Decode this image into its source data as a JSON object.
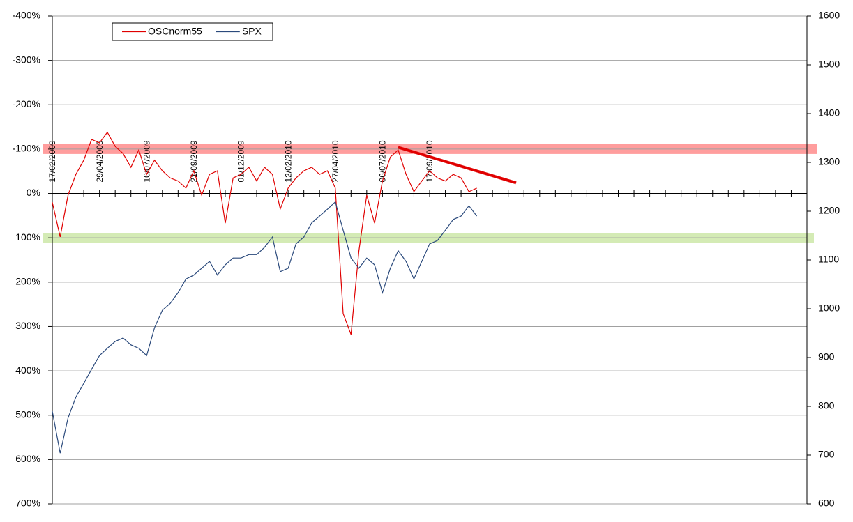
{
  "chart_data": {
    "type": "line",
    "categories": [
      "17/02/2009",
      null,
      null,
      null,
      null,
      null,
      "29/04/2009",
      null,
      null,
      null,
      null,
      null,
      "10/07/2009",
      null,
      null,
      null,
      null,
      null,
      "21/09/2009",
      null,
      null,
      null,
      null,
      null,
      "01/12/2009",
      null,
      null,
      null,
      null,
      null,
      "12/02/2010",
      null,
      null,
      null,
      null,
      null,
      "27/04/2010",
      null,
      null,
      null,
      null,
      null,
      "06/07/2010",
      null,
      null,
      null,
      null,
      null,
      "17/09/2010",
      null,
      null,
      null,
      null,
      null,
      null,
      null,
      null,
      null,
      null,
      null,
      null,
      null,
      null,
      null,
      null,
      null,
      null,
      null,
      null,
      null,
      null,
      null,
      null,
      null,
      null,
      null,
      null,
      null,
      null,
      null,
      null,
      null,
      null,
      null,
      null,
      null,
      null,
      null,
      null,
      null,
      null,
      null,
      null,
      null,
      null,
      null,
      null
    ],
    "series": [
      {
        "name": "OSCnorm55",
        "color": "#e00000",
        "values": [
          20,
          98,
          4,
          -43,
          -75,
          -122,
          -114,
          -138,
          -106,
          -90,
          -59,
          -98,
          -43,
          -75,
          -51,
          -35,
          -28,
          -12,
          -51,
          4,
          -43,
          -51,
          67,
          -35,
          -43,
          -59,
          -28,
          -59,
          -43,
          35,
          -12,
          -35,
          -51,
          -59,
          -43,
          -51,
          -12,
          271,
          318,
          130,
          4,
          67,
          -28,
          -82,
          -98,
          -43,
          -4,
          -28,
          -51,
          -35,
          -28,
          -43,
          -35,
          -4,
          -12,
          null,
          null,
          null,
          null,
          null,
          null,
          null,
          null,
          null,
          null,
          null,
          null,
          null,
          null,
          null,
          null,
          null,
          null,
          null,
          null,
          null,
          null,
          null,
          null,
          null,
          null,
          null,
          null,
          null,
          null,
          null,
          null,
          null,
          null,
          null,
          null,
          null,
          null,
          null,
          null,
          null,
          null
        ]
      },
      {
        "name": "SPX",
        "color": "#2b4a7c",
        "axis": "y2",
        "values": [
          790,
          704,
          776,
          819,
          847,
          876,
          904,
          919,
          933,
          940,
          926,
          919,
          904,
          961,
          997,
          1011,
          1033,
          1061,
          1069,
          1083,
          1097,
          1069,
          1090,
          1104,
          1104,
          1111,
          1111,
          1126,
          1147,
          1076,
          1083,
          1133,
          1147,
          1176,
          1190,
          1204,
          1219,
          1161,
          1104,
          1083,
          1104,
          1090,
          1033,
          1083,
          1119,
          1097,
          1061,
          1097,
          1133,
          1140,
          1161,
          1183,
          1190,
          1211,
          1190,
          null,
          null,
          null,
          null,
          null,
          null,
          null,
          null,
          null,
          null,
          null,
          null,
          null,
          null,
          null,
          null,
          null,
          null,
          null,
          null,
          null,
          null,
          null,
          null,
          null,
          null,
          null,
          null,
          null,
          null,
          null,
          null,
          null,
          null,
          null,
          null,
          null,
          null,
          null,
          null,
          null,
          null
        ]
      }
    ],
    "ylim": [
      -400,
      700
    ],
    "y_reversed": true,
    "yticks": [
      {
        "value": -400,
        "label": "-400%"
      },
      {
        "value": -300,
        "label": "-300%"
      },
      {
        "value": -200,
        "label": "-200%"
      },
      {
        "value": -100,
        "label": "-100%"
      },
      {
        "value": 0,
        "label": "0%"
      },
      {
        "value": 100,
        "label": "100%"
      },
      {
        "value": 200,
        "label": "200%"
      },
      {
        "value": 300,
        "label": "300%"
      },
      {
        "value": 400,
        "label": "400%"
      },
      {
        "value": 500,
        "label": "500%"
      },
      {
        "value": 600,
        "label": "600%"
      },
      {
        "value": 700,
        "label": "700%"
      }
    ],
    "y2lim": [
      600,
      1600
    ],
    "y2ticks": [
      600,
      700,
      800,
      900,
      1000,
      1100,
      1200,
      1300,
      1400,
      1500,
      1600
    ],
    "bands": [
      {
        "value": -100,
        "color": "#ff8c8c"
      },
      {
        "value": 100,
        "color": "#cde8a8"
      }
    ],
    "trend_line": {
      "x": [
        44,
        59
      ],
      "values": [
        -104,
        -24
      ],
      "color": "#e00000"
    },
    "grid": true,
    "legend": "top-left"
  }
}
